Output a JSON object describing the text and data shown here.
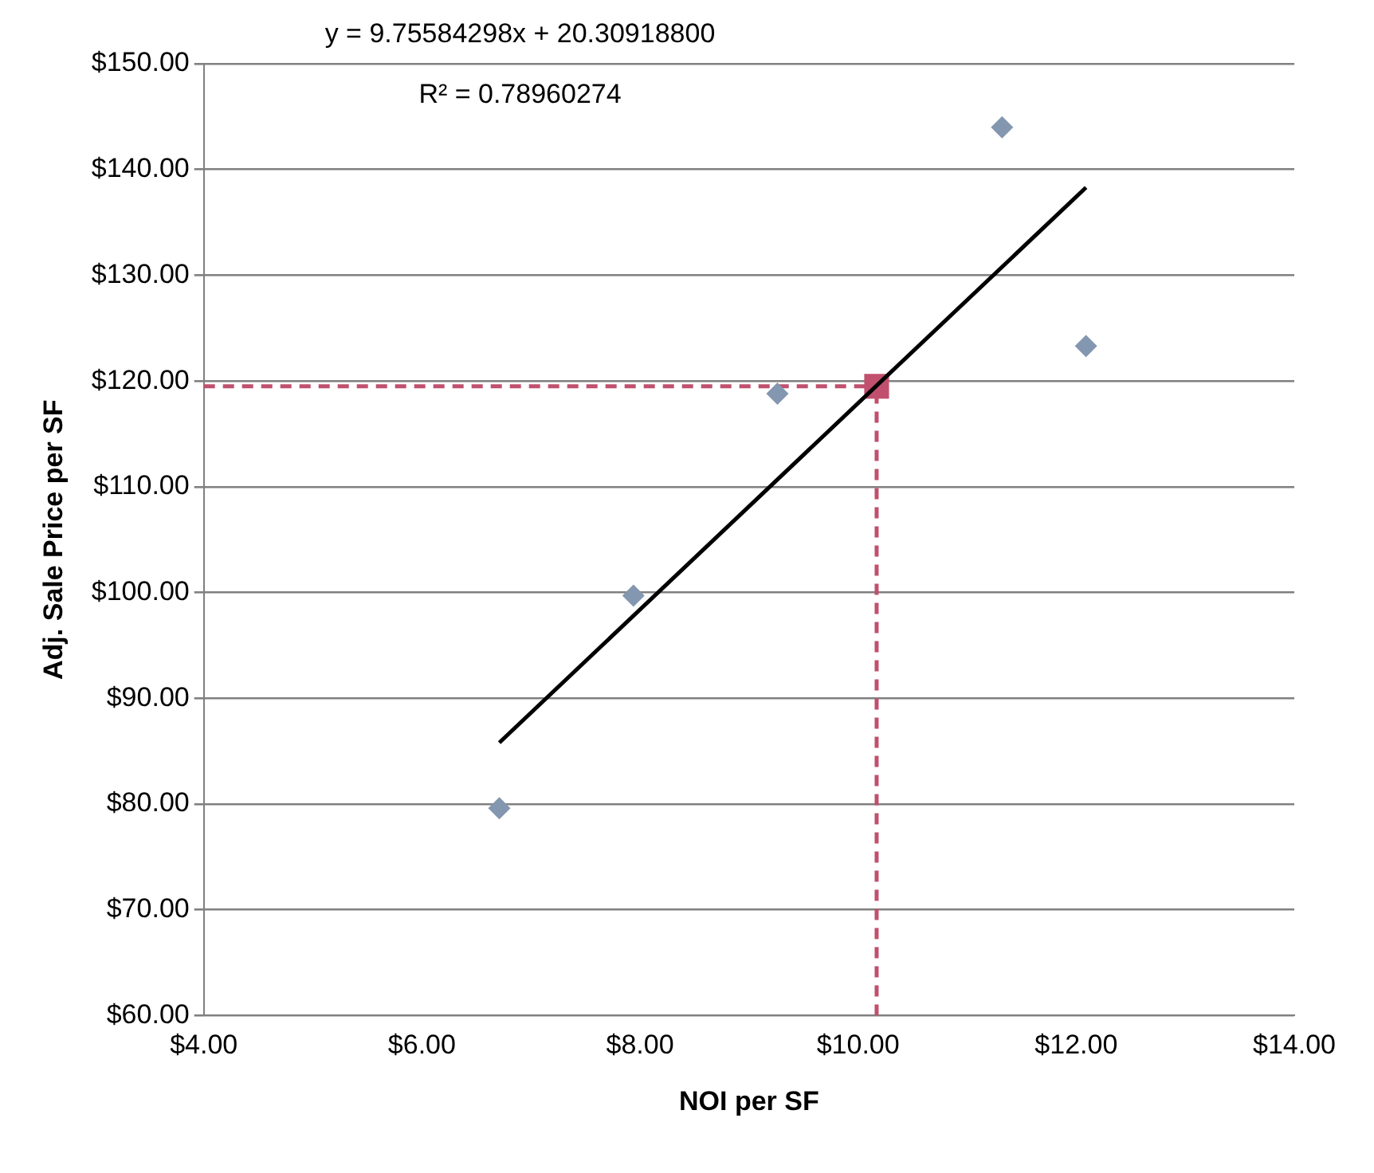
{
  "chart_data": {
    "type": "scatter",
    "xlabel": "NOI per SF",
    "ylabel": "Adj. Sale Price per SF",
    "annotations": [
      "y = 9.75584298x + 20.30918800",
      "R² = 0.78960274"
    ],
    "xlim": [
      4,
      14
    ],
    "xticks": [
      {
        "value": 4,
        "label": "$4.00"
      },
      {
        "value": 6,
        "label": "$6.00"
      },
      {
        "value": 8,
        "label": "$8.00"
      },
      {
        "value": 10,
        "label": "$10.00"
      },
      {
        "value": 12,
        "label": "$12.00"
      },
      {
        "value": 14,
        "label": "$14.00"
      }
    ],
    "ylim": [
      60,
      150
    ],
    "yticks": [
      {
        "value": 60,
        "label": "$60.00"
      },
      {
        "value": 70,
        "label": "$70.00"
      },
      {
        "value": 80,
        "label": "$80.00"
      },
      {
        "value": 90,
        "label": "$90.00"
      },
      {
        "value": 100,
        "label": "$100.00"
      },
      {
        "value": 110,
        "label": "$110.00"
      },
      {
        "value": 120,
        "label": "$120.00"
      },
      {
        "value": 130,
        "label": "$130.00"
      },
      {
        "value": 140,
        "label": "$140.00"
      },
      {
        "value": 150,
        "label": "$150.00"
      }
    ],
    "grid": "y",
    "legend": false,
    "series": [
      {
        "type": "scatter",
        "color": "#8497b0",
        "marker": "diamond",
        "x": [
          6.71,
          7.94,
          9.26,
          11.32,
          12.09
        ],
        "values": [
          79.6,
          99.7,
          118.8,
          144.0,
          123.3
        ]
      },
      {
        "type": "line",
        "color": "#000000",
        "marker": "none",
        "line_style": "solid",
        "x": [
          6.71,
          12.09
        ],
        "values": [
          85.8,
          138.3
        ]
      },
      {
        "type": "line",
        "color": "#c0506e",
        "marker": "none",
        "line_style": "dashed",
        "x": [
          4,
          10.17
        ],
        "values": [
          119.5,
          119.5
        ]
      },
      {
        "type": "line",
        "color": "#c0506e",
        "marker": "none",
        "line_style": "dashed",
        "x": [
          10.17,
          10.17
        ],
        "values": [
          60,
          119.5
        ]
      },
      {
        "type": "scatter",
        "color": "#c0506e",
        "marker": "square",
        "x": [
          10.17
        ],
        "values": [
          119.5
        ]
      }
    ]
  }
}
